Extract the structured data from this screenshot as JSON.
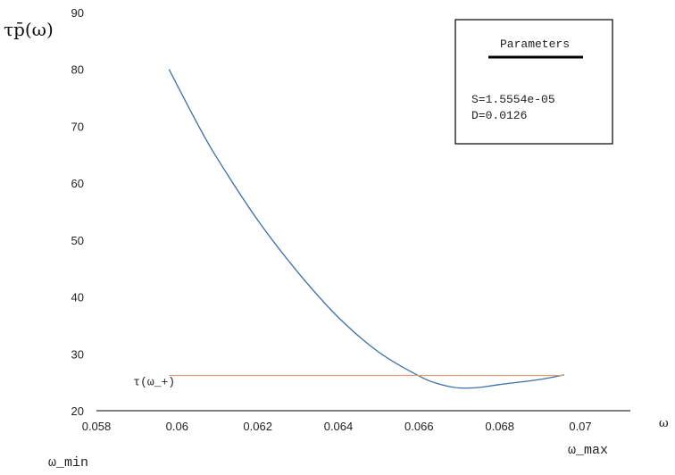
{
  "chart_data": {
    "type": "line",
    "ylabel": "τp̄(ω)",
    "xlabel": "ω",
    "xlim": [
      0.058,
      0.07
    ],
    "ylim": [
      20,
      90
    ],
    "x_ticks": [
      "0.058",
      "0.06",
      "0.062",
      "0.064",
      "0.066",
      "0.068",
      "0.07"
    ],
    "y_ticks": [
      "20",
      "30",
      "40",
      "50",
      "60",
      "70",
      "80",
      "90"
    ],
    "grid": false,
    "colors": {
      "curve": "#3a6fa8",
      "threshold": "#d9a07a"
    },
    "curve": {
      "x": [
        0.0598,
        0.0605,
        0.061,
        0.062,
        0.063,
        0.064,
        0.065,
        0.066,
        0.0665,
        0.067,
        0.0675,
        0.068,
        0.069,
        0.0696
      ],
      "y": [
        80,
        70.5,
        64.3,
        53.5,
        44.3,
        36.4,
        30.3,
        26.1,
        24.7,
        24.0,
        24.1,
        24.6,
        25.5,
        26.3
      ]
    },
    "threshold": {
      "label": "τ(ω_+)",
      "y": 26.2,
      "x_from": 0.0598,
      "x_to": 0.0696
    },
    "x_markers": {
      "min_label": "ω_min",
      "max_label": "ω_max"
    },
    "legend": {
      "title": "Parameters",
      "lines": [
        "S=1.5554e-05",
        "D=0.0126"
      ],
      "placement": "top-right"
    }
  }
}
